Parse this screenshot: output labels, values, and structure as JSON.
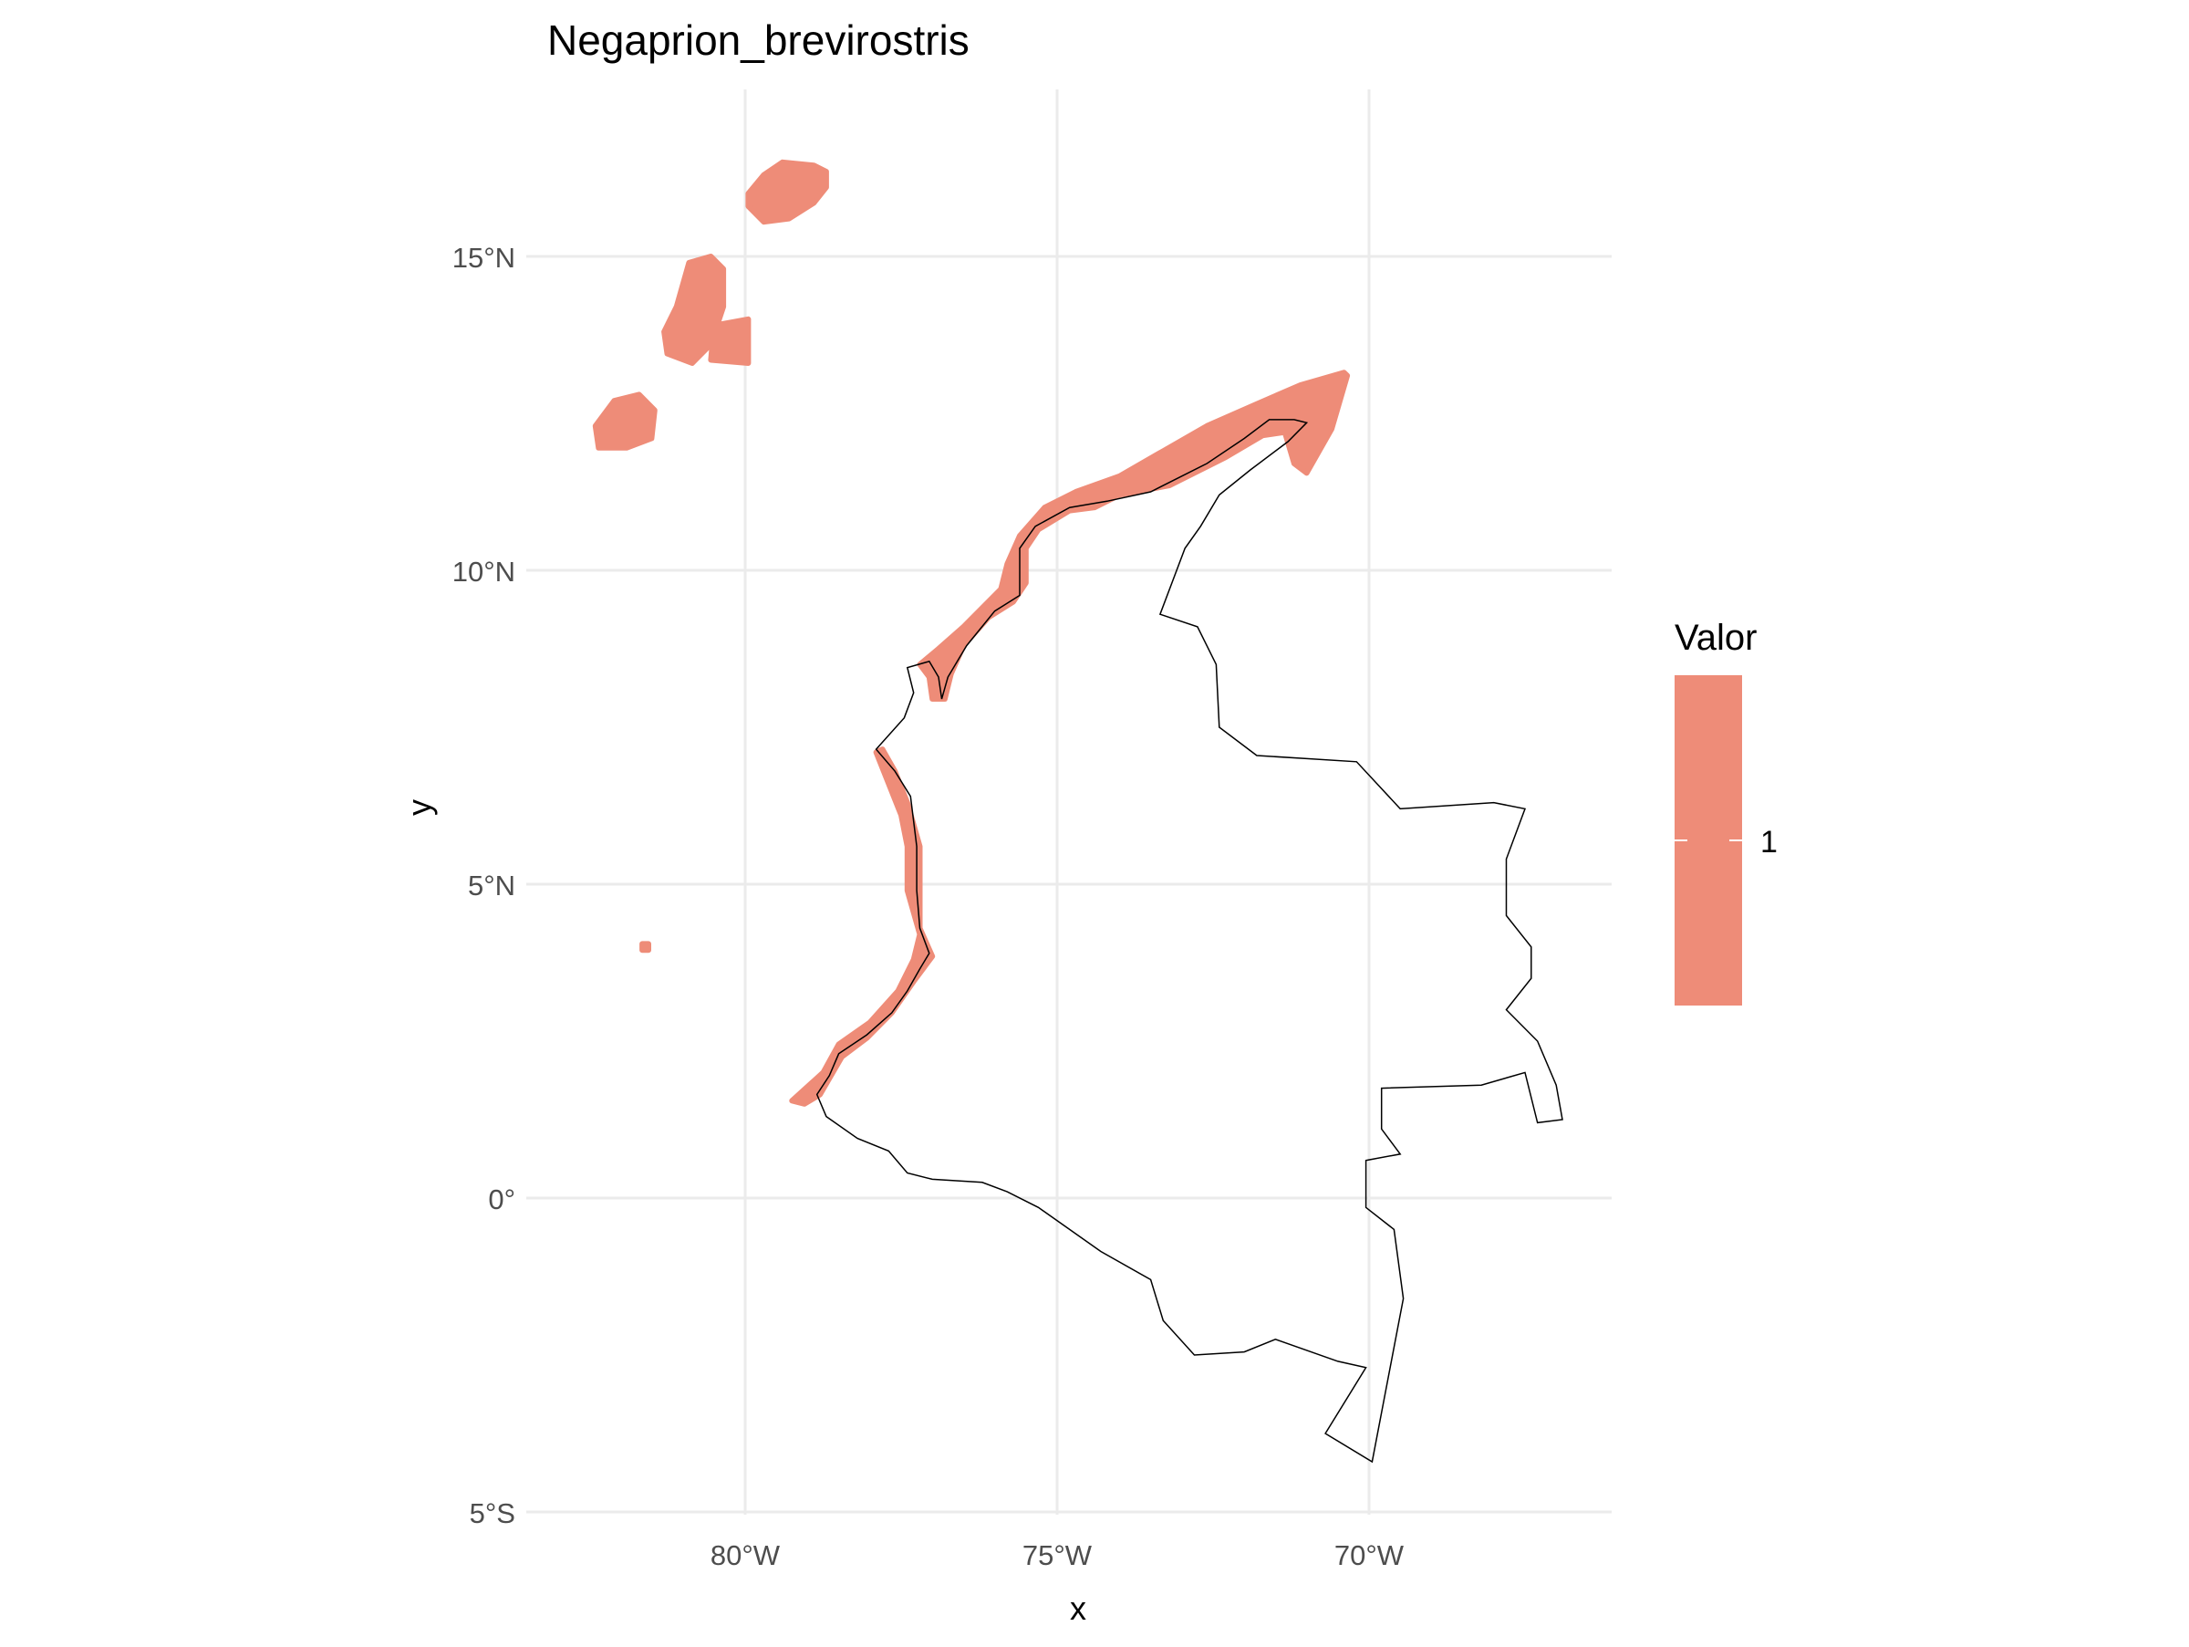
{
  "title": "Negaprion_brevirostris",
  "axes": {
    "x_label": "x",
    "y_label": "y",
    "x_ticks": [
      {
        "lon": -80,
        "label": "80°W"
      },
      {
        "lon": -75,
        "label": "75°W"
      },
      {
        "lon": -70,
        "label": "70°W"
      }
    ],
    "y_ticks": [
      {
        "lat": 15,
        "label": "15°N"
      },
      {
        "lat": 10,
        "label": "10°N"
      },
      {
        "lat": 5,
        "label": "5°N"
      },
      {
        "lat": 0,
        "label": "0°"
      },
      {
        "lat": -5,
        "label": "5°S"
      }
    ]
  },
  "legend": {
    "title": "Valor",
    "label": "1",
    "color": "#EE8C78",
    "position": "right"
  },
  "colors": {
    "range_fill": "#EE8C78",
    "border": "#000000",
    "grid": "#EBEBEB"
  },
  "chart_data": {
    "type": "map",
    "title": "Negaprion_brevirostris",
    "xlabel": "x",
    "ylabel": "y",
    "xlim": [
      -83.4,
      -66.2
    ],
    "ylim": [
      -5.0,
      17.2
    ],
    "grid": true,
    "legend_placement": "right",
    "series": [
      {
        "name": "1",
        "description_units": "lon/lat degrees",
        "regions": [
          {
            "id": "san-andres-north",
            "points": [
              [
                -79.95,
                16.0
              ],
              [
                -79.7,
                16.3
              ],
              [
                -79.4,
                16.5
              ],
              [
                -78.9,
                16.45
              ],
              [
                -78.7,
                16.35
              ],
              [
                -78.7,
                16.1
              ],
              [
                -78.9,
                15.85
              ],
              [
                -79.3,
                15.6
              ],
              [
                -79.7,
                15.55
              ],
              [
                -79.95,
                15.8
              ]
            ]
          },
          {
            "id": "san-andres-middle",
            "points": [
              [
                -81.1,
                14.2
              ],
              [
                -80.9,
                14.9
              ],
              [
                -80.55,
                15.0
              ],
              [
                -80.35,
                14.8
              ],
              [
                -80.35,
                14.2
              ],
              [
                -80.55,
                13.6
              ],
              [
                -80.85,
                13.3
              ],
              [
                -81.25,
                13.45
              ],
              [
                -81.3,
                13.8
              ]
            ]
          },
          {
            "id": "san-andres-side",
            "points": [
              [
                -80.5,
                13.9
              ],
              [
                -79.95,
                14.0
              ],
              [
                -79.95,
                13.3
              ],
              [
                -80.55,
                13.35
              ]
            ]
          },
          {
            "id": "san-andres-south",
            "points": [
              [
                -82.4,
                12.3
              ],
              [
                -82.1,
                12.7
              ],
              [
                -81.7,
                12.8
              ],
              [
                -81.45,
                12.55
              ],
              [
                -81.5,
                12.1
              ],
              [
                -81.9,
                11.95
              ],
              [
                -82.35,
                11.95
              ]
            ]
          },
          {
            "id": "malpelo",
            "points": [
              [
                -81.65,
                4.05
              ],
              [
                -81.55,
                4.05
              ],
              [
                -81.55,
                3.95
              ],
              [
                -81.65,
                3.95
              ]
            ]
          },
          {
            "id": "caribbean-coast",
            "points": [
              [
                -70.35,
                13.1
              ],
              [
                -70.6,
                12.25
              ],
              [
                -71.0,
                11.55
              ],
              [
                -71.2,
                11.7
              ],
              [
                -71.35,
                12.2
              ],
              [
                -71.7,
                12.15
              ],
              [
                -72.3,
                11.8
              ],
              [
                -73.2,
                11.35
              ],
              [
                -74.0,
                11.2
              ],
              [
                -74.4,
                11.0
              ],
              [
                -74.8,
                10.95
              ],
              [
                -75.3,
                10.65
              ],
              [
                -75.5,
                10.35
              ],
              [
                -75.5,
                9.8
              ],
              [
                -75.7,
                9.5
              ],
              [
                -76.1,
                9.25
              ],
              [
                -76.5,
                8.8
              ],
              [
                -76.7,
                8.35
              ],
              [
                -76.8,
                7.95
              ],
              [
                -77.0,
                7.95
              ],
              [
                -77.05,
                8.3
              ],
              [
                -77.2,
                8.5
              ],
              [
                -76.9,
                8.75
              ],
              [
                -76.5,
                9.1
              ],
              [
                -76.2,
                9.4
              ],
              [
                -75.9,
                9.7
              ],
              [
                -75.8,
                10.1
              ],
              [
                -75.6,
                10.55
              ],
              [
                -75.2,
                11.0
              ],
              [
                -74.7,
                11.25
              ],
              [
                -74.0,
                11.5
              ],
              [
                -73.3,
                11.9
              ],
              [
                -72.6,
                12.3
              ],
              [
                -71.8,
                12.65
              ],
              [
                -71.1,
                12.95
              ],
              [
                -70.4,
                13.15
              ]
            ]
          },
          {
            "id": "pacific-coast",
            "points": [
              [
                -77.9,
                7.1
              ],
              [
                -77.7,
                6.6
              ],
              [
                -77.5,
                6.1
              ],
              [
                -77.4,
                5.6
              ],
              [
                -77.4,
                4.9
              ],
              [
                -77.2,
                4.2
              ],
              [
                -77.3,
                3.8
              ],
              [
                -77.55,
                3.3
              ],
              [
                -78.0,
                2.8
              ],
              [
                -78.5,
                2.45
              ],
              [
                -78.75,
                2.0
              ],
              [
                -79.25,
                1.55
              ],
              [
                -79.05,
                1.5
              ],
              [
                -78.8,
                1.65
              ],
              [
                -78.45,
                2.25
              ],
              [
                -78.05,
                2.55
              ],
              [
                -77.65,
                2.95
              ],
              [
                -77.3,
                3.45
              ],
              [
                -77.0,
                3.85
              ],
              [
                -77.2,
                4.3
              ],
              [
                -77.2,
                4.9
              ],
              [
                -77.2,
                5.6
              ],
              [
                -77.4,
                6.3
              ],
              [
                -77.6,
                6.8
              ],
              [
                -77.8,
                7.15
              ]
            ]
          }
        ]
      }
    ],
    "border": {
      "name": "Colombia",
      "points": [
        [
          -71.0,
          12.35
        ],
        [
          -71.3,
          12.05
        ],
        [
          -71.9,
          11.6
        ],
        [
          -72.4,
          11.2
        ],
        [
          -72.7,
          10.7
        ],
        [
          -72.95,
          10.35
        ],
        [
          -73.35,
          9.3
        ],
        [
          -72.75,
          9.1
        ],
        [
          -72.45,
          8.5
        ],
        [
          -72.4,
          7.5
        ],
        [
          -71.8,
          7.05
        ],
        [
          -71.0,
          7.0
        ],
        [
          -70.2,
          6.95
        ],
        [
          -69.5,
          6.2
        ],
        [
          -68.0,
          6.3
        ],
        [
          -67.5,
          6.2
        ],
        [
          -67.8,
          5.4
        ],
        [
          -67.8,
          4.5
        ],
        [
          -67.4,
          4.0
        ],
        [
          -67.4,
          3.5
        ],
        [
          -67.8,
          3.0
        ],
        [
          -67.3,
          2.5
        ],
        [
          -67.0,
          1.8
        ],
        [
          -66.9,
          1.25
        ],
        [
          -67.3,
          1.2
        ],
        [
          -67.5,
          2.0
        ],
        [
          -68.2,
          1.8
        ],
        [
          -69.8,
          1.75
        ],
        [
          -69.8,
          1.1
        ],
        [
          -69.5,
          0.7
        ],
        [
          -70.05,
          0.6
        ],
        [
          -70.05,
          -0.15
        ],
        [
          -69.6,
          -0.5
        ],
        [
          -69.45,
          -1.6
        ],
        [
          -69.95,
          -4.2
        ],
        [
          -70.7,
          -3.75
        ],
        [
          -70.05,
          -2.7
        ],
        [
          -70.5,
          -2.6
        ],
        [
          -71.5,
          -2.25
        ],
        [
          -72.0,
          -2.45
        ],
        [
          -72.8,
          -2.5
        ],
        [
          -73.3,
          -1.95
        ],
        [
          -73.5,
          -1.3
        ],
        [
          -74.3,
          -0.85
        ],
        [
          -75.3,
          -0.15
        ],
        [
          -75.8,
          0.1
        ],
        [
          -76.2,
          0.25
        ],
        [
          -77.0,
          0.3
        ],
        [
          -77.4,
          0.4
        ],
        [
          -77.7,
          0.75
        ],
        [
          -78.2,
          0.95
        ],
        [
          -78.7,
          1.3
        ],
        [
          -78.85,
          1.65
        ],
        [
          -78.65,
          1.95
        ],
        [
          -78.5,
          2.3
        ],
        [
          -78.05,
          2.6
        ],
        [
          -77.65,
          2.95
        ],
        [
          -77.4,
          3.3
        ],
        [
          -77.2,
          3.65
        ],
        [
          -77.05,
          3.9
        ],
        [
          -77.2,
          4.3
        ],
        [
          -77.25,
          4.9
        ],
        [
          -77.25,
          5.6
        ],
        [
          -77.35,
          6.4
        ],
        [
          -77.6,
          6.8
        ],
        [
          -77.9,
          7.15
        ],
        [
          -77.45,
          7.65
        ],
        [
          -77.3,
          8.05
        ],
        [
          -77.4,
          8.45
        ],
        [
          -77.05,
          8.55
        ],
        [
          -76.9,
          8.3
        ],
        [
          -76.85,
          7.95
        ],
        [
          -76.75,
          8.3
        ],
        [
          -76.45,
          8.8
        ],
        [
          -76.0,
          9.35
        ],
        [
          -75.6,
          9.6
        ],
        [
          -75.6,
          10.35
        ],
        [
          -75.35,
          10.7
        ],
        [
          -74.8,
          11.0
        ],
        [
          -74.2,
          11.1
        ],
        [
          -73.5,
          11.25
        ],
        [
          -72.6,
          11.7
        ],
        [
          -72.0,
          12.1
        ],
        [
          -71.6,
          12.4
        ],
        [
          -71.2,
          12.4
        ],
        [
          -71.0,
          12.35
        ]
      ]
    }
  }
}
